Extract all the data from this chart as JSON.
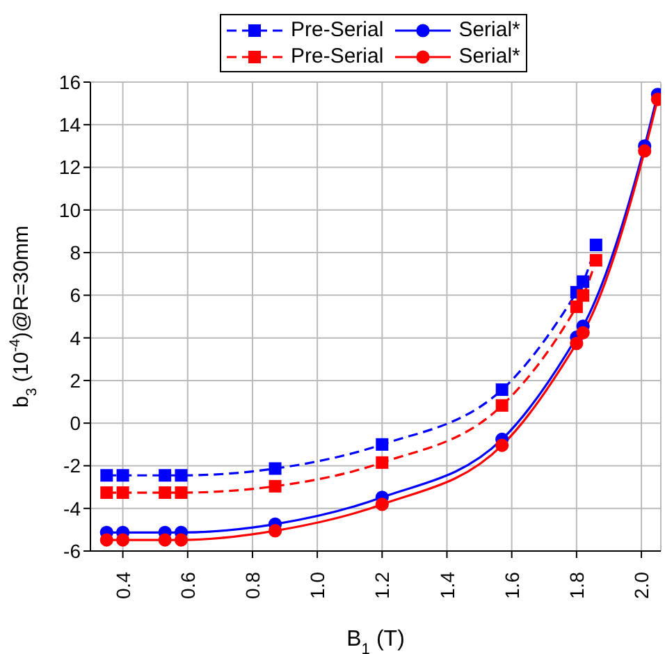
{
  "chart_data": {
    "type": "line",
    "xlabel": "B$_{1}$ (T)",
    "ylabel": "b$_{3}$ (10$^{-4}$)@R=30mm",
    "xlim": [
      0.3,
      2.06
    ],
    "xticks": [
      0.4,
      0.6,
      0.8,
      {
        "value": 1,
        "label": "1.0"
      },
      1.2,
      1.4,
      1.6,
      1.8,
      {
        "value": 2,
        "label": "2.0"
      }
    ],
    "ylim": [
      -6,
      16
    ],
    "yticks": [
      -6,
      -4,
      -2,
      0,
      2,
      4,
      6,
      8,
      10,
      12,
      14,
      16
    ],
    "grid": true,
    "legend": "top",
    "series": [
      {
        "name": "Pre-Serial",
        "color": "#0000ff",
        "marker": "square",
        "line_style": "dashed",
        "x": [
          0.35,
          0.4,
          0.53,
          0.58,
          0.87,
          1.2,
          1.57,
          1.8,
          1.82,
          1.86
        ],
        "values": [
          -2.45,
          -2.45,
          -2.45,
          -2.45,
          -2.13,
          -1.0,
          1.57,
          6.14,
          6.64,
          8.36
        ]
      },
      {
        "name": "Serial*",
        "color": "#0000ff",
        "marker": "circle",
        "line_style": "solid",
        "x": [
          0.35,
          0.4,
          0.53,
          0.58,
          0.87,
          1.2,
          1.57,
          1.8,
          1.82,
          2.01,
          2.05
        ],
        "values": [
          -5.13,
          -5.13,
          -5.13,
          -5.13,
          -4.74,
          -3.48,
          -0.76,
          4.03,
          4.55,
          13.0,
          15.42
        ]
      },
      {
        "name": "Pre-Serial",
        "color": "#ff0000",
        "marker": "square",
        "line_style": "dashed",
        "x": [
          0.35,
          0.4,
          0.53,
          0.58,
          0.87,
          1.2,
          1.57,
          1.8,
          1.82,
          1.86
        ],
        "values": [
          -3.26,
          -3.26,
          -3.26,
          -3.26,
          -2.96,
          -1.85,
          0.83,
          5.46,
          5.99,
          7.64
        ]
      },
      {
        "name": "Serial*",
        "color": "#ff0000",
        "marker": "circle",
        "line_style": "solid",
        "x": [
          0.35,
          0.4,
          0.53,
          0.58,
          0.87,
          1.2,
          1.57,
          1.8,
          1.82,
          2.01,
          2.05
        ],
        "values": [
          -5.48,
          -5.48,
          -5.48,
          -5.48,
          -5.05,
          -3.81,
          -1.04,
          3.74,
          4.24,
          12.77,
          15.19
        ]
      }
    ]
  }
}
